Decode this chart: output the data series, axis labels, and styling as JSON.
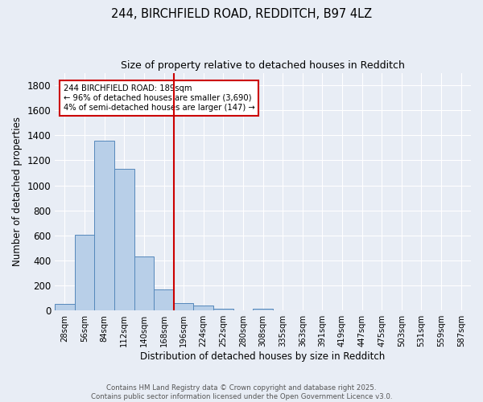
{
  "title_line1": "244, BIRCHFIELD ROAD, REDDITCH, B97 4LZ",
  "title_line2": "Size of property relative to detached houses in Redditch",
  "xlabel": "Distribution of detached houses by size in Redditch",
  "ylabel": "Number of detached properties",
  "bin_labels": [
    "28sqm",
    "56sqm",
    "84sqm",
    "112sqm",
    "140sqm",
    "168sqm",
    "196sqm",
    "224sqm",
    "252sqm",
    "280sqm",
    "308sqm",
    "335sqm",
    "363sqm",
    "391sqm",
    "419sqm",
    "447sqm",
    "475sqm",
    "503sqm",
    "531sqm",
    "559sqm",
    "587sqm"
  ],
  "bar_heights": [
    55,
    605,
    1360,
    1130,
    430,
    170,
    60,
    40,
    15,
    0,
    15,
    0,
    0,
    0,
    0,
    0,
    0,
    0,
    0,
    0,
    0
  ],
  "bar_color": "#b8cfe8",
  "bar_edge_color": "#5588bb",
  "vline_index": 6,
  "vline_color": "#cc0000",
  "annotation_text": "244 BIRCHFIELD ROAD: 189sqm\n← 96% of detached houses are smaller (3,690)\n4% of semi-detached houses are larger (147) →",
  "annotation_box_edge": "#cc0000",
  "annotation_box_bg": "white",
  "ylim": [
    0,
    1900
  ],
  "yticks": [
    0,
    200,
    400,
    600,
    800,
    1000,
    1200,
    1400,
    1600,
    1800
  ],
  "bg_color": "#e8edf5",
  "grid_color": "#ffffff",
  "footer_line1": "Contains HM Land Registry data © Crown copyright and database right 2025.",
  "footer_line2": "Contains public sector information licensed under the Open Government Licence v3.0."
}
